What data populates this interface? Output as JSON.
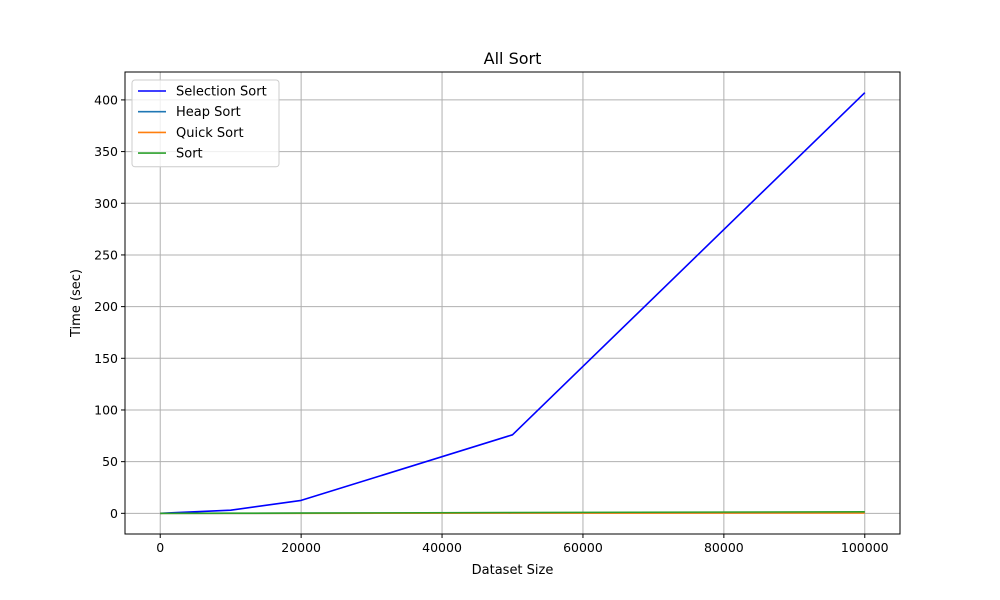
{
  "chart_data": {
    "type": "line",
    "title": "All Sort",
    "xlabel": "Dataset Size",
    "ylabel": "Time (sec)",
    "xlim": [
      -5000,
      105000
    ],
    "ylim": [
      -20,
      427
    ],
    "xticks": [
      0,
      20000,
      40000,
      60000,
      80000,
      100000
    ],
    "yticks": [
      0,
      50,
      100,
      150,
      200,
      250,
      300,
      350,
      400
    ],
    "grid": true,
    "legend_position": "top-left",
    "x": [
      0,
      10000,
      20000,
      50000,
      100000
    ],
    "series": [
      {
        "name": "Selection Sort",
        "color": "#0000ff",
        "values": [
          0,
          3,
          12.5,
          76,
          407
        ]
      },
      {
        "name": "Heap Sort",
        "color": "#1f77b4",
        "values": [
          0,
          0.05,
          0.1,
          0.3,
          0.6
        ]
      },
      {
        "name": "Quick Sort",
        "color": "#ff7f0e",
        "values": [
          0,
          0.03,
          0.07,
          0.2,
          0.4
        ]
      },
      {
        "name": "Sort",
        "color": "#2ca02c",
        "values": [
          0,
          0.1,
          0.25,
          0.8,
          1.5
        ]
      }
    ]
  }
}
